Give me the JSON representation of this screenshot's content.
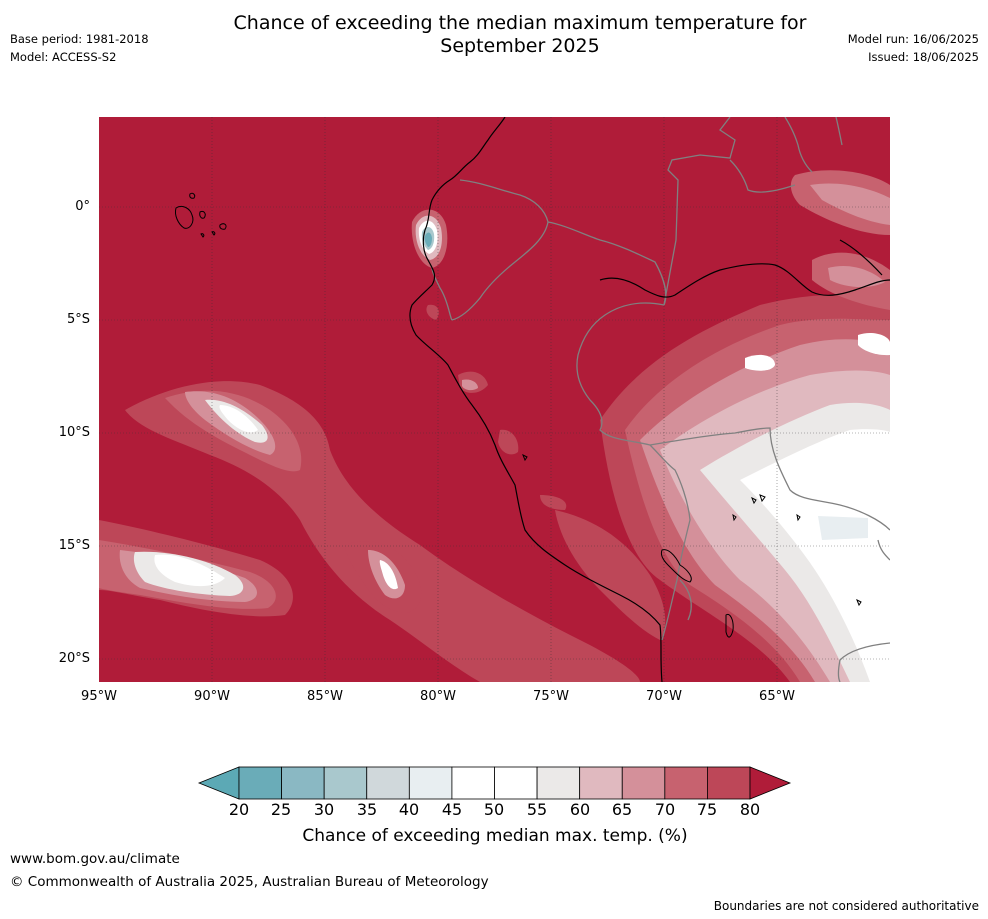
{
  "header": {
    "title_line1": "Chance of exceeding the median maximum temperature for",
    "title_line2": "September 2025",
    "base_period": "Base period: 1981-2018",
    "model": "Model: ACCESS-S2",
    "model_run": "Model run: 16/06/2025",
    "issued": "Issued: 18/06/2025"
  },
  "map": {
    "lat_labels": [
      "0°",
      "5°S",
      "10°S",
      "15°S",
      "20°S"
    ],
    "lon_labels": [
      "95°W",
      "90°W",
      "85°W",
      "80°W",
      "75°W",
      "70°W",
      "65°W"
    ],
    "background_color": "#b01c39"
  },
  "colorbar": {
    "ticks": [
      "20",
      "25",
      "30",
      "35",
      "40",
      "45",
      "50",
      "55",
      "60",
      "65",
      "70",
      "75",
      "80"
    ],
    "colors": [
      "#5ca9b5",
      "#6aacb8",
      "#8ab8c3",
      "#a9c8cd",
      "#d0d8db",
      "#e8eef1",
      "#ffffff",
      "#ffffff",
      "#ebe9e8",
      "#e0b9bf",
      "#d4909a",
      "#c7626f",
      "#bd4758",
      "#b01c39"
    ],
    "label": "Chance of exceeding median max. temp. (%)"
  },
  "footer": {
    "url": "www.bom.gov.au/climate",
    "copyright": "© Commonwealth of Australia 2025, Australian Bureau of Meteorology",
    "note": "Boundaries are not considered authoritative"
  }
}
